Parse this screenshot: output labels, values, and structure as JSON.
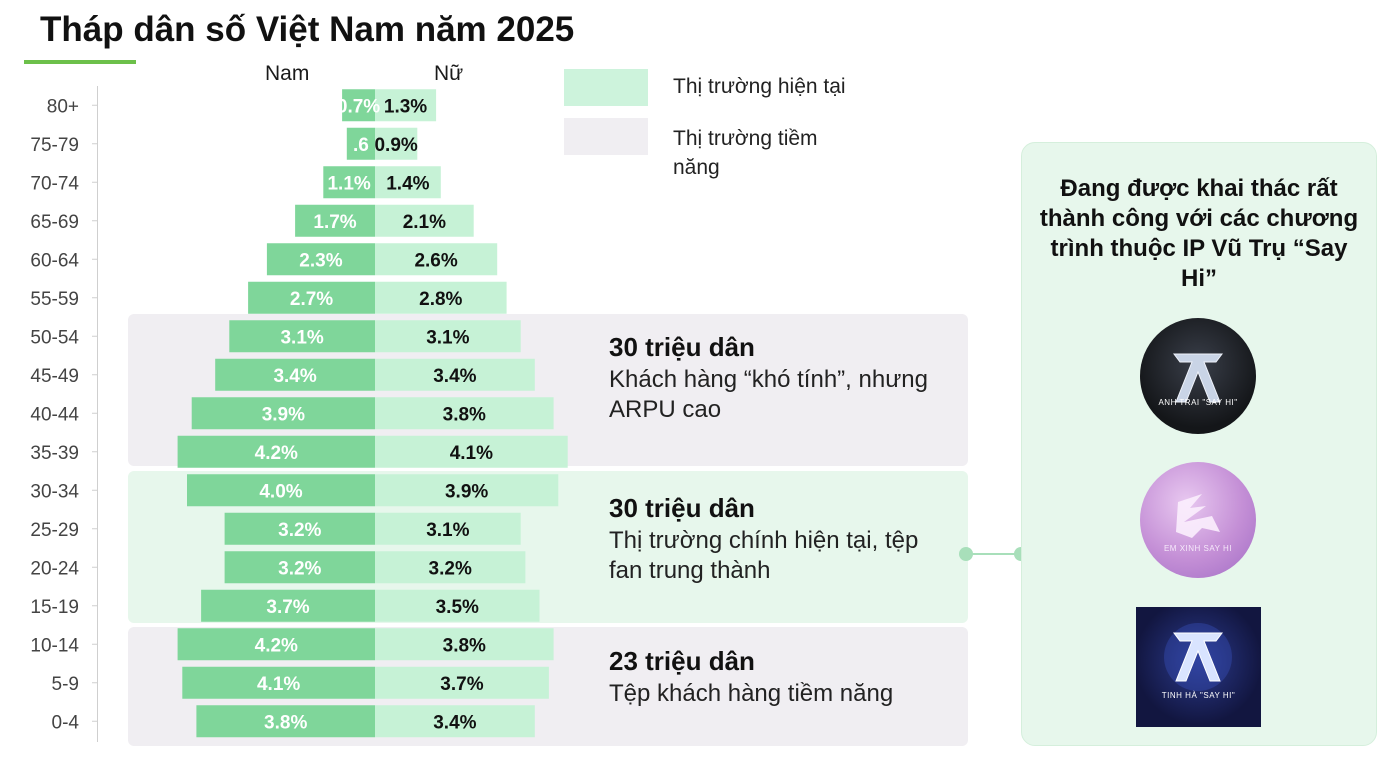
{
  "title": "Tháp dân số Việt Nam năm 2025",
  "colors": {
    "male_bar": "#7fd69a",
    "female_bar": "#c6f2d6",
    "band_current": "#e7f7ec",
    "band_potential": "#f0eef2",
    "accent_underline": "#6cc04a"
  },
  "chart_data": {
    "type": "bar",
    "orientation": "horizontal-pyramid",
    "title": "Tháp dân số Việt Nam năm 2025",
    "categories": [
      "80+",
      "75-79",
      "70-74",
      "65-69",
      "60-64",
      "55-59",
      "50-54",
      "45-49",
      "40-44",
      "35-39",
      "30-34",
      "25-29",
      "20-24",
      "15-19",
      "10-14",
      "5-9",
      "0-4"
    ],
    "series": [
      {
        "name": "Nam",
        "values": [
          0.7,
          0.6,
          1.1,
          1.7,
          2.3,
          2.7,
          3.1,
          3.4,
          3.9,
          4.2,
          4.0,
          3.2,
          3.2,
          3.7,
          4.2,
          4.1,
          3.8
        ],
        "labels": [
          "0.7%",
          ".6",
          "1.1%",
          "1.7%",
          "2.3%",
          "2.7%",
          "3.1%",
          "3.4%",
          "3.9%",
          "4.2%",
          "4.0%",
          "3.2%",
          "3.2%",
          "3.7%",
          "4.2%",
          "4.1%",
          "3.8%"
        ]
      },
      {
        "name": "Nữ",
        "values": [
          1.3,
          0.9,
          1.4,
          2.1,
          2.6,
          2.8,
          3.1,
          3.4,
          3.8,
          4.1,
          3.9,
          3.1,
          3.2,
          3.5,
          3.8,
          3.7,
          3.4
        ],
        "labels": [
          "1.3%",
          "0.9%",
          "1.4%",
          "2.1%",
          "2.6%",
          "2.8%",
          "3.1%",
          "3.4%",
          "3.8%",
          "4.1%",
          "3.9%",
          "3.1%",
          "3.2%",
          "3.5%",
          "3.8%",
          "3.7%",
          "3.4%"
        ]
      }
    ],
    "unit": "%"
  },
  "legend": [
    {
      "label": "Thị trường hiện tại",
      "color": "#cdf3dc"
    },
    {
      "label": "Thị trường tiềm năng",
      "color": "#f0eef2"
    }
  ],
  "segments": [
    {
      "title": "30 triệu dân",
      "desc": "Khách hàng “khó tính”, nhưng ARPU cao",
      "range": [
        "35-39",
        "50-54"
      ],
      "kind": "potential"
    },
    {
      "title": "30 triệu dân",
      "desc": "Thị trường chính hiện tại, tệp fan trung thành",
      "range": [
        "15-19",
        "30-34"
      ],
      "kind": "current"
    },
    {
      "title": "23 triệu dân",
      "desc": "Tệp khách hàng tiềm năng",
      "range": [
        "0-4",
        "10-14"
      ],
      "kind": "potential"
    }
  ],
  "panel": {
    "heading": "Đang được khai thác rất thành công với các chương trình thuộc IP Vũ Trụ “Say Hi”",
    "logos": [
      {
        "text": "ANH TRAI \"SAY HI\"",
        "icon": "anh-trai-say-hi-logo"
      },
      {
        "text": "EM XINH SAY HI",
        "icon": "em-xinh-say-hi-logo"
      },
      {
        "text": "TINH HÀ \"SAY HI\"",
        "icon": "tinh-ha-say-hi-logo"
      }
    ]
  }
}
